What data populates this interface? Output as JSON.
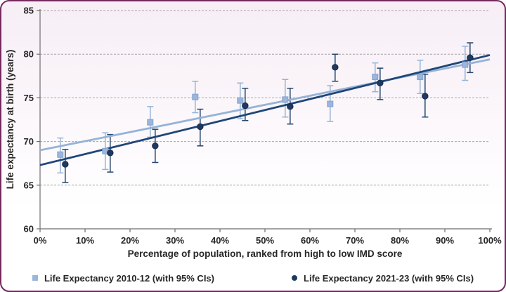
{
  "frame": {
    "border_color": "#73295F",
    "background_top": "#F7EEF6",
    "background_bottom": "#FFFFFF"
  },
  "chart_data": {
    "type": "scatter",
    "xlabel": "Percentage of population, ranked from high to low IMD score",
    "ylabel": "Life expectancy at birth (years)",
    "xlim": [
      0,
      100
    ],
    "ylim": [
      60,
      85
    ],
    "x_ticks": {
      "values": [
        0,
        10,
        20,
        30,
        40,
        50,
        60,
        70,
        80,
        90,
        100
      ],
      "labels": [
        "0%",
        "10%",
        "20%",
        "30%",
        "40%",
        "50%",
        "60%",
        "70%",
        "80%",
        "90%",
        "100%"
      ]
    },
    "y_ticks": {
      "values": [
        60,
        65,
        70,
        75,
        80,
        85
      ],
      "labels": [
        "60",
        "65",
        "70",
        "75",
        "80",
        "85"
      ]
    },
    "grid": "horizontal-dashed",
    "gridline_color": "#A6A6A6",
    "axis_color": "#6E6E6E",
    "text_color": "#262626",
    "legend_position": "bottom",
    "series": [
      {
        "name": "Life Expectancy 2010-12 (with 95% CIs)",
        "marker": "square",
        "color": "#9BB5DB",
        "edge_color": "#84A2CE",
        "line_color": "#95B3D7",
        "errorbar_color": "#95B3D7",
        "x_offset": -0.5,
        "points": [
          {
            "x": 5,
            "y": 68.5,
            "ci_low": 66.4,
            "ci_high": 70.4
          },
          {
            "x": 15,
            "y": 68.9,
            "ci_low": 66.8,
            "ci_high": 71.0
          },
          {
            "x": 25,
            "y": 72.2,
            "ci_low": 70.5,
            "ci_high": 74.0
          },
          {
            "x": 35,
            "y": 75.1,
            "ci_low": 73.3,
            "ci_high": 76.9
          },
          {
            "x": 45,
            "y": 74.7,
            "ci_low": 72.6,
            "ci_high": 76.7
          },
          {
            "x": 55,
            "y": 74.8,
            "ci_low": 72.8,
            "ci_high": 77.1
          },
          {
            "x": 65,
            "y": 74.3,
            "ci_low": 72.3,
            "ci_high": 76.4
          },
          {
            "x": 75,
            "y": 77.4,
            "ci_low": 75.7,
            "ci_high": 79.0
          },
          {
            "x": 85,
            "y": 77.4,
            "ci_low": 75.5,
            "ci_high": 79.3
          },
          {
            "x": 95,
            "y": 78.8,
            "ci_low": 77.0,
            "ci_high": 80.9
          }
        ],
        "trendline": {
          "x0": 0,
          "y0": 69.0,
          "x1": 100,
          "y1": 79.4
        }
      },
      {
        "name": "Life Expectancy 2021-23 (with 95% CIs)",
        "marker": "circle",
        "color": "#1E3962",
        "edge_color": "#16294A",
        "line_color": "#1F4678",
        "errorbar_color": "#24466E",
        "x_offset": 0.6,
        "points": [
          {
            "x": 5,
            "y": 67.4,
            "ci_low": 65.3,
            "ci_high": 69.1
          },
          {
            "x": 15,
            "y": 68.7,
            "ci_low": 66.5,
            "ci_high": 70.8
          },
          {
            "x": 25,
            "y": 69.5,
            "ci_low": 67.6,
            "ci_high": 71.4
          },
          {
            "x": 35,
            "y": 71.7,
            "ci_low": 69.5,
            "ci_high": 73.7
          },
          {
            "x": 45,
            "y": 74.1,
            "ci_low": 72.4,
            "ci_high": 76.1
          },
          {
            "x": 55,
            "y": 74.0,
            "ci_low": 72.0,
            "ci_high": 76.1
          },
          {
            "x": 65,
            "y": 78.5,
            "ci_low": 76.9,
            "ci_high": 80.0
          },
          {
            "x": 75,
            "y": 76.7,
            "ci_low": 74.8,
            "ci_high": 78.4
          },
          {
            "x": 85,
            "y": 75.2,
            "ci_low": 72.8,
            "ci_high": 77.7
          },
          {
            "x": 95,
            "y": 79.6,
            "ci_low": 77.9,
            "ci_high": 81.3
          }
        ],
        "trendline": {
          "x0": 0,
          "y0": 67.3,
          "x1": 100,
          "y1": 79.9
        }
      }
    ]
  }
}
